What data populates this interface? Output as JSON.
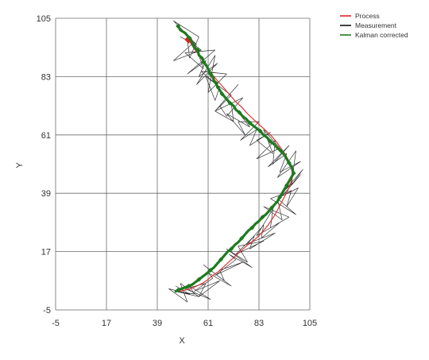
{
  "chart_data": {
    "type": "line",
    "title": "",
    "xlabel": "X",
    "ylabel": "Y",
    "xlim": [
      -5,
      105
    ],
    "ylim": [
      -5,
      105
    ],
    "x_ticks": [
      "-5",
      "17",
      "39",
      "61",
      "83",
      "105"
    ],
    "y_ticks": [
      "105",
      "83",
      "61",
      "39",
      "17",
      "-5"
    ],
    "x_tick_values": [
      -5,
      17,
      39,
      61,
      83,
      105
    ],
    "y_tick_values": [
      105,
      83,
      61,
      39,
      17,
      -5
    ],
    "grid": true,
    "legend_position": "top-right",
    "series": [
      {
        "name": "Process",
        "color": "#e02020",
        "x": [
          52.5,
          53.5,
          55,
          57,
          59,
          61,
          63,
          65.5,
          68,
          70.5,
          73,
          75.5,
          78,
          80.5,
          83,
          85.5,
          88,
          90.5,
          92.5,
          94.5,
          96,
          97,
          97.5,
          97,
          96,
          94.5,
          93,
          91.5,
          90,
          88.5,
          87,
          85,
          83,
          80.5,
          78,
          75.5,
          73,
          70.5,
          68,
          65.5,
          63,
          61,
          58.5,
          56,
          53.5,
          51,
          48.5
        ],
        "y": [
          97,
          95.5,
          93.5,
          91,
          88.5,
          86,
          83.5,
          81,
          78.5,
          76,
          73.5,
          71.5,
          69,
          67,
          65,
          63,
          61,
          58.5,
          56,
          53.5,
          51,
          48.5,
          46,
          43.5,
          41,
          38.5,
          36,
          33.5,
          31,
          29,
          27,
          25,
          23,
          21,
          19.5,
          17.5,
          15.5,
          13.5,
          11.5,
          9.5,
          8,
          6.5,
          5,
          4,
          3,
          2.5,
          2
        ]
      },
      {
        "name": "Measurement",
        "color": "#111111",
        "x": [
          49,
          56,
          46,
          57,
          53,
          52,
          58,
          46,
          55,
          59,
          51,
          64,
          52,
          60,
          57,
          65,
          56,
          64,
          61,
          69,
          58,
          66,
          64,
          60,
          71,
          64,
          74,
          66,
          69,
          76,
          64,
          72,
          71,
          79,
          69,
          77,
          74,
          83,
          75,
          82,
          79,
          88,
          82,
          89,
          85,
          92,
          82,
          90,
          89,
          96,
          87,
          95,
          92,
          101,
          91,
          99,
          97,
          102,
          94,
          99,
          101,
          93,
          100,
          95,
          97,
          88,
          99,
          91,
          93,
          85,
          96,
          88,
          89,
          82,
          92,
          84,
          85,
          78,
          90,
          79,
          81,
          73,
          85,
          74,
          78,
          69,
          80,
          70,
          73,
          64,
          76,
          66,
          68,
          59,
          71,
          61,
          63,
          55,
          66,
          57,
          60,
          51,
          62,
          53,
          55,
          47,
          57,
          49,
          52,
          44,
          53,
          47
        ],
        "y": [
          98,
          95,
          104,
          98,
          90,
          97,
          93,
          89,
          96,
          86,
          92,
          93,
          84,
          89,
          83,
          88,
          80,
          91,
          77,
          84,
          85,
          79,
          74,
          83,
          76,
          70,
          80,
          72,
          68,
          75,
          70,
          66,
          73,
          64,
          69,
          61,
          66,
          66,
          59,
          63,
          57,
          62,
          59,
          54,
          63,
          56,
          52,
          59,
          50,
          57,
          49,
          54,
          47,
          51,
          45,
          55,
          42,
          48,
          40,
          44,
          46,
          38,
          41,
          34,
          40,
          37,
          31,
          37,
          29,
          34,
          30,
          26,
          33,
          23,
          28,
          22,
          27,
          20,
          24,
          18,
          23,
          16,
          21,
          19,
          13,
          18,
          11,
          16,
          14,
          8,
          13,
          10,
          6,
          12,
          4,
          9,
          7,
          2,
          6,
          0,
          5,
          3,
          -1,
          4,
          1,
          2,
          0,
          5,
          -2,
          3,
          1,
          4
        ]
      },
      {
        "name": "Kalman corrected",
        "color": "#1e7a1e",
        "x": [
          48,
          49,
          51,
          53,
          54,
          55,
          56.5,
          57,
          58.5,
          59,
          60,
          61,
          62,
          63,
          63.5,
          64.5,
          65,
          66,
          67,
          68,
          69.5,
          70.5,
          72,
          73,
          74.5,
          76,
          77.5,
          79,
          80.5,
          82,
          83.5,
          85,
          86.5,
          88,
          89.5,
          91,
          92.5,
          94,
          95,
          96,
          97,
          97.5,
          98,
          97,
          96,
          95,
          94,
          93,
          92,
          91,
          90,
          88.5,
          87.5,
          86,
          84.5,
          83,
          81.5,
          80,
          78.5,
          77,
          75.5,
          74,
          72.5,
          71,
          69.5,
          68,
          66.5,
          65,
          63.5,
          62,
          60,
          58.5,
          57,
          55.5,
          54,
          52.5,
          51,
          49.5,
          48,
          47
        ],
        "y": [
          102,
          100.5,
          99.5,
          97.5,
          96,
          94,
          93,
          91,
          90,
          88.5,
          87.5,
          86,
          84,
          83,
          81.5,
          80.5,
          79,
          78,
          76.5,
          75.5,
          74,
          73,
          72,
          70.5,
          69.5,
          68,
          67,
          65.5,
          64.5,
          63.5,
          62.5,
          61,
          60,
          58.5,
          57.5,
          56,
          55,
          53.5,
          52,
          50.5,
          49,
          48,
          46.5,
          45,
          43.5,
          42,
          40.5,
          39,
          37.5,
          36,
          35,
          33.5,
          32.5,
          31,
          30,
          28.5,
          27.5,
          26,
          25,
          23.5,
          22,
          20.5,
          19.5,
          18,
          17,
          15.5,
          14,
          12.5,
          11,
          10,
          8.5,
          7.5,
          6.5,
          5.5,
          4.5,
          4,
          3.5,
          3,
          2.5,
          2
        ]
      }
    ]
  },
  "legend": [
    {
      "label": "Process",
      "color": "#e02020"
    },
    {
      "label": "Measurement",
      "color": "#111111"
    },
    {
      "label": "Kalman corrected",
      "color": "#1e7a1e"
    }
  ]
}
